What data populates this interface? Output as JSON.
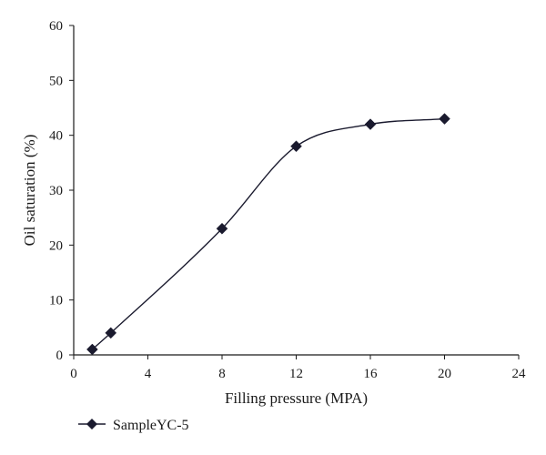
{
  "chart_data": {
    "type": "line",
    "title": "",
    "xlabel": "Filling pressure (MPA)",
    "ylabel": "Oil saturation (%)",
    "xlim": [
      0,
      24
    ],
    "ylim": [
      0,
      60
    ],
    "xticks": [
      0,
      4,
      8,
      12,
      16,
      20,
      24
    ],
    "yticks": [
      0,
      10,
      20,
      30,
      40,
      50,
      60
    ],
    "grid": false,
    "smooth": true,
    "legend_position": "bottom-left",
    "series": [
      {
        "name": "SampleYC-5",
        "marker": "diamond",
        "color": "#1a1a2e",
        "x": [
          1,
          2,
          8,
          12,
          16,
          20
        ],
        "y": [
          1,
          4,
          23,
          38,
          42,
          43
        ]
      }
    ]
  }
}
